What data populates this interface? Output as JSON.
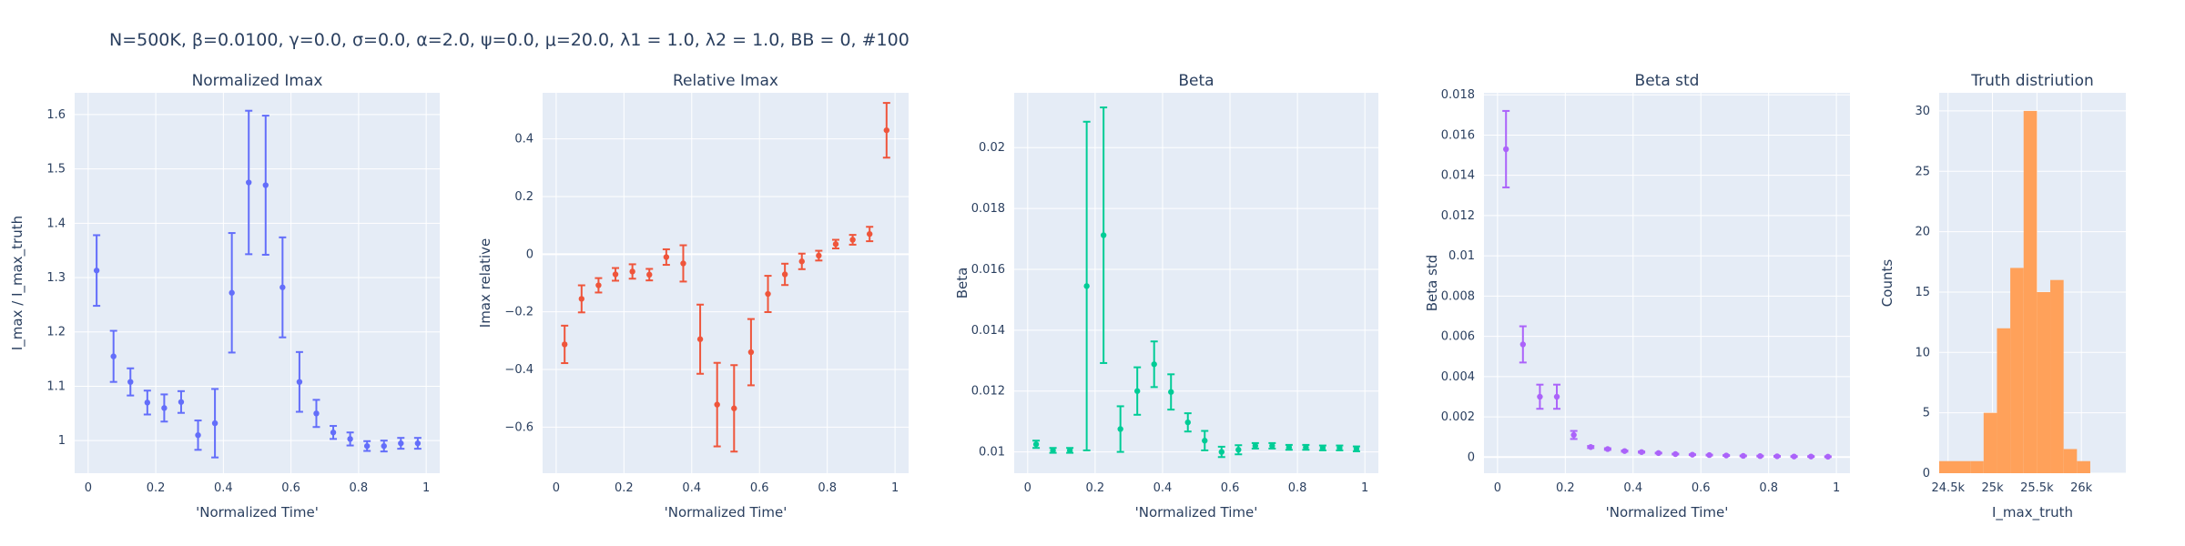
{
  "figure": {
    "title": "N=500K, β=0.0100, γ=0.0, σ=0.0,  α=2.0, ψ=0.0, μ=20.0, λ1 = 1.0, λ2 = 1.0, BB = 0, #100"
  },
  "colors": {
    "plot_bg": "#E5ECF6",
    "grid": "#FFFFFF",
    "text": "#2A3F5F",
    "series_1": "#636EFA",
    "series_2": "#EF553B",
    "series_3": "#00CC96",
    "series_4": "#AB63FA",
    "series_5": "#FFA15A"
  },
  "chart_data": [
    {
      "type": "scatter",
      "title": "Normalized Imax",
      "xlabel": "'Normalized Time'",
      "ylabel": "I_max / I_max_truth",
      "xlim": [
        -0.04,
        1.04
      ],
      "ylim": [
        0.94,
        1.64
      ],
      "xticks": [
        0,
        0.2,
        0.4,
        0.6,
        0.8,
        1
      ],
      "xticklabels": [
        "0",
        "0.2",
        "0.4",
        "0.6",
        "0.8",
        "1"
      ],
      "yticks": [
        1,
        1.1,
        1.2,
        1.3,
        1.4,
        1.5,
        1.6
      ],
      "yticklabels": [
        "1",
        "1.1",
        "1.2",
        "1.3",
        "1.4",
        "1.5",
        "1.6"
      ],
      "color": "#636EFA",
      "x": [
        0.025,
        0.075,
        0.125,
        0.175,
        0.225,
        0.275,
        0.325,
        0.375,
        0.425,
        0.475,
        0.525,
        0.575,
        0.625,
        0.675,
        0.725,
        0.775,
        0.825,
        0.875,
        0.925,
        0.975
      ],
      "y": [
        1.313,
        1.155,
        1.108,
        1.07,
        1.06,
        1.071,
        1.01,
        1.032,
        1.272,
        1.475,
        1.47,
        1.282,
        1.108,
        1.05,
        1.015,
        1.003,
        0.99,
        0.99,
        0.995,
        0.995
      ],
      "err": [
        0.065,
        0.047,
        0.025,
        0.022,
        0.025,
        0.02,
        0.027,
        0.063,
        0.11,
        0.132,
        0.128,
        0.092,
        0.055,
        0.025,
        0.012,
        0.012,
        0.009,
        0.01,
        0.01,
        0.01
      ]
    },
    {
      "type": "scatter",
      "title": "Relative Imax",
      "xlabel": "'Normalized Time'",
      "ylabel": "Imax relative",
      "xlim": [
        -0.04,
        1.04
      ],
      "ylim": [
        -0.76,
        0.56
      ],
      "xticks": [
        0,
        0.2,
        0.4,
        0.6,
        0.8,
        1
      ],
      "xticklabels": [
        "0",
        "0.2",
        "0.4",
        "0.6",
        "0.8",
        "1"
      ],
      "yticks": [
        -0.6,
        -0.4,
        -0.2,
        0,
        0.2,
        0.4
      ],
      "yticklabels": [
        "−0.6",
        "−0.4",
        "−0.2",
        "0",
        "0.2",
        "0.4"
      ],
      "color": "#EF553B",
      "x": [
        0.025,
        0.075,
        0.125,
        0.175,
        0.225,
        0.275,
        0.325,
        0.375,
        0.425,
        0.475,
        0.525,
        0.575,
        0.625,
        0.675,
        0.725,
        0.775,
        0.825,
        0.875,
        0.925,
        0.975
      ],
      "y": [
        -0.313,
        -0.155,
        -0.108,
        -0.07,
        -0.06,
        -0.071,
        -0.01,
        -0.032,
        -0.295,
        -0.522,
        -0.535,
        -0.34,
        -0.138,
        -0.07,
        -0.025,
        -0.005,
        0.035,
        0.05,
        0.07,
        0.43
      ],
      "err": [
        0.065,
        0.047,
        0.025,
        0.022,
        0.025,
        0.02,
        0.027,
        0.063,
        0.12,
        0.145,
        0.15,
        0.115,
        0.063,
        0.037,
        0.027,
        0.017,
        0.015,
        0.017,
        0.025,
        0.095
      ]
    },
    {
      "type": "scatter",
      "title": "Beta",
      "xlabel": "'Normalized Time'",
      "ylabel": "Beta",
      "xlim": [
        -0.04,
        1.04
      ],
      "ylim": [
        0.0093,
        0.0218
      ],
      "xticks": [
        0,
        0.2,
        0.4,
        0.6,
        0.8,
        1
      ],
      "xticklabels": [
        "0",
        "0.2",
        "0.4",
        "0.6",
        "0.8",
        "1"
      ],
      "yticks": [
        0.01,
        0.012,
        0.014,
        0.016,
        0.018,
        0.02
      ],
      "yticklabels": [
        "0.01",
        "0.012",
        "0.014",
        "0.016",
        "0.018",
        "0.02"
      ],
      "color": "#00CC96",
      "x": [
        0.025,
        0.075,
        0.125,
        0.175,
        0.225,
        0.275,
        0.325,
        0.375,
        0.425,
        0.475,
        0.525,
        0.575,
        0.625,
        0.675,
        0.725,
        0.775,
        0.825,
        0.875,
        0.925,
        0.975
      ],
      "y": [
        0.01025,
        0.01005,
        0.01005,
        0.01545,
        0.01712,
        0.01075,
        0.012,
        0.01288,
        0.01197,
        0.01097,
        0.01037,
        0.01,
        0.01007,
        0.0102,
        0.0102,
        0.01015,
        0.01015,
        0.01013,
        0.01013,
        0.0101
      ],
      "err": [
        0.00012,
        8e-05,
        8e-05,
        0.0054,
        0.0042,
        0.00075,
        0.00078,
        0.00075,
        0.00058,
        0.0003,
        0.00032,
        0.00017,
        0.00015,
        9e-05,
        9e-05,
        8e-05,
        8e-05,
        8e-05,
        8e-05,
        8e-05
      ]
    },
    {
      "type": "scatter",
      "title": "Beta std",
      "xlabel": "'Normalized Time'",
      "ylabel": "Beta std",
      "xlim": [
        -0.04,
        1.04
      ],
      "ylim": [
        -0.0008,
        0.0181
      ],
      "xticks": [
        0,
        0.2,
        0.4,
        0.6,
        0.8,
        1
      ],
      "xticklabels": [
        "0",
        "0.2",
        "0.4",
        "0.6",
        "0.8",
        "1"
      ],
      "yticks": [
        0,
        0.002,
        0.004,
        0.006,
        0.008,
        0.01,
        0.012,
        0.014,
        0.016,
        0.018
      ],
      "yticklabels": [
        "0",
        "0.002",
        "0.004",
        "0.006",
        "0.008",
        "0.01",
        "0.012",
        "0.014",
        "0.016",
        "0.018"
      ],
      "color": "#AB63FA",
      "x": [
        0.025,
        0.075,
        0.125,
        0.175,
        0.225,
        0.275,
        0.325,
        0.375,
        0.425,
        0.475,
        0.525,
        0.575,
        0.625,
        0.675,
        0.725,
        0.775,
        0.825,
        0.875,
        0.925,
        0.975
      ],
      "y": [
        0.0153,
        0.0056,
        0.003,
        0.003,
        0.0011,
        0.0005,
        0.0004,
        0.0003,
        0.00025,
        0.0002,
        0.00015,
        0.00012,
        0.0001,
        8e-05,
        6e-05,
        5e-05,
        4e-05,
        3e-05,
        3e-05,
        2e-05
      ],
      "err": [
        0.0019,
        0.0009,
        0.0006,
        0.0006,
        0.0002,
        5e-05,
        4e-05,
        3e-05,
        3e-05,
        2e-05,
        2e-05,
        2e-05,
        2e-05,
        2e-05,
        2e-05,
        2e-05,
        2e-05,
        2e-05,
        2e-05,
        2e-05
      ]
    },
    {
      "type": "bar",
      "title": "Truth distriution",
      "xlabel": "I_max_truth",
      "ylabel": "Counts",
      "xlim": [
        24400,
        26500
      ],
      "ylim": [
        0,
        31.5
      ],
      "xticks": [
        24500,
        25000,
        25500,
        26000
      ],
      "xticklabels": [
        "24.5k",
        "25k",
        "25.5k",
        "26k"
      ],
      "yticks": [
        0,
        5,
        10,
        15,
        20,
        25,
        30
      ],
      "yticklabels": [
        "0",
        "5",
        "10",
        "15",
        "20",
        "25",
        "30"
      ],
      "color": "#FFA15A",
      "bin_edges": [
        24400,
        24750,
        24900,
        25050,
        25200,
        25350,
        25500,
        25650,
        25800,
        25950,
        26100,
        26250,
        26500
      ],
      "values": [
        1,
        1,
        5,
        12,
        17,
        30,
        15,
        16,
        2,
        1,
        0,
        0
      ]
    }
  ]
}
